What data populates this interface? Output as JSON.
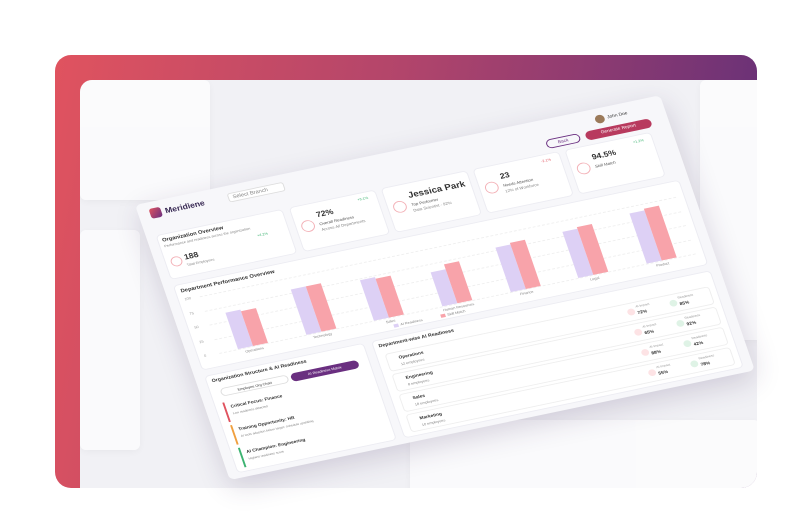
{
  "brand": "Meridiene",
  "header": {
    "branch": "Select Branch",
    "user": "John Doe",
    "back": "Back",
    "report": "Generate Report"
  },
  "overview": {
    "title": "Organization Overview",
    "subtitle": "Performance and readiness across the organization",
    "value": "188",
    "label": "Total Employees",
    "change": "+4.2%"
  },
  "stats": [
    {
      "value": "72%",
      "label": "Overall Readiness",
      "sub": "Across All Departments",
      "change": "+3.1%"
    },
    {
      "value": "Jessica Park",
      "label": "Top Performer",
      "sub": "Data Scientist - 92%",
      "change": ""
    },
    {
      "value": "23",
      "label": "Needs Attention",
      "sub": "12% of Workforce",
      "change": "-2.1%"
    },
    {
      "value": "94.5%",
      "label": "Skill Match",
      "sub": "",
      "change": "+1.2%"
    }
  ],
  "chart_data": {
    "type": "bar",
    "title": "Department Performance Overview",
    "categories": [
      "Operations",
      "Technology",
      "Sales",
      "Human Resources",
      "Finance",
      "Legal",
      "Product"
    ],
    "series": [
      {
        "name": "AI Readiness",
        "color": "#ddd0f5",
        "values": [
          65,
          80,
          72,
          60,
          78,
          82,
          88
        ]
      },
      {
        "name": "Skill Match",
        "color": "#f8a3aa",
        "values": [
          62,
          80,
          68,
          68,
          82,
          85,
          92
        ]
      }
    ],
    "ylim": [
      0,
      100
    ],
    "yticks": [
      0,
      25,
      50,
      75,
      100
    ]
  },
  "structure": {
    "title": "Organization Structure & AI Readiness",
    "tabs": [
      "Employee Org Chart",
      "AI Readiness Matrix"
    ],
    "items": [
      {
        "title": "Critical Focus: Finance",
        "text": "Low readiness detected",
        "color": "#e0535f"
      },
      {
        "title": "Training Opportunity: HR",
        "text": "AI tools adoption below target; schedule upskilling",
        "color": "#f0a040"
      },
      {
        "title": "AI Champion: Engineering",
        "text": "Highest readiness score",
        "color": "#3cb371"
      }
    ]
  },
  "readiness": {
    "title": "Department-wise AI Readiness",
    "departments": [
      {
        "name": "Operations",
        "employees": "12 employees",
        "metrics": [
          {
            "label": "AI Impact",
            "value": "72%"
          },
          {
            "label": "Readiness",
            "value": "85%"
          }
        ]
      },
      {
        "name": "Engineering",
        "employees": "8 employees",
        "metrics": [
          {
            "label": "AI Impact",
            "value": "65%"
          },
          {
            "label": "Readiness",
            "value": "92%"
          }
        ]
      },
      {
        "name": "Sales",
        "employees": "18 employees",
        "metrics": [
          {
            "label": "AI Impact",
            "value": "88%"
          },
          {
            "label": "Readiness",
            "value": "42%"
          }
        ]
      },
      {
        "name": "Marketing",
        "employees": "10 employees",
        "metrics": [
          {
            "label": "AI Impact",
            "value": "55%"
          },
          {
            "label": "Readiness",
            "value": "78%"
          }
        ]
      }
    ]
  }
}
